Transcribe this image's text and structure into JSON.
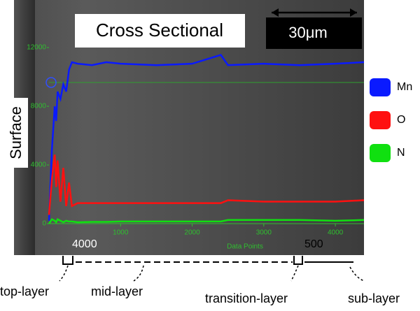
{
  "chart_data": {
    "type": "line",
    "title": "Cross Sectional",
    "scale_bar": "30μm",
    "y_label": "Surface",
    "x_label": "Data Points",
    "annotations": [
      "4000",
      "500"
    ],
    "layers": [
      "top-layer",
      "mid-layer",
      "transition-layer",
      "sub-layer"
    ],
    "x": [
      0,
      40,
      80,
      100,
      120,
      160,
      200,
      240,
      280,
      320,
      400,
      600,
      800,
      1000,
      1500,
      2000,
      2400,
      2500,
      3000,
      3500,
      4000,
      4400
    ],
    "series": [
      {
        "name": "Mn",
        "color": "#0a1aff",
        "values": [
          200,
          5000,
          8000,
          7000,
          9000,
          8500,
          9500,
          9000,
          10500,
          11000,
          10900,
          10800,
          11000,
          10900,
          10800,
          10900,
          11500,
          10800,
          10900,
          10800,
          10900,
          11000
        ]
      },
      {
        "name": "O",
        "color": "#ff1010",
        "values": [
          600,
          3000,
          4700,
          2500,
          4300,
          1500,
          3800,
          1200,
          2800,
          1200,
          1400,
          1400,
          1400,
          1400,
          1400,
          1400,
          1400,
          1600,
          1500,
          1500,
          1500,
          1600
        ]
      },
      {
        "name": "N",
        "color": "#10e010",
        "values": [
          0,
          300,
          200,
          100,
          300,
          200,
          100,
          200,
          150,
          150,
          100,
          120,
          120,
          150,
          150,
          150,
          150,
          250,
          250,
          250,
          200,
          250
        ]
      }
    ],
    "xlim": [
      0,
      4400
    ],
    "ylim": [
      -2140,
      15240
    ],
    "xticks": [
      1000,
      2000,
      3000,
      4000
    ],
    "yticks": [
      0,
      4000,
      8000,
      12000
    ]
  }
}
